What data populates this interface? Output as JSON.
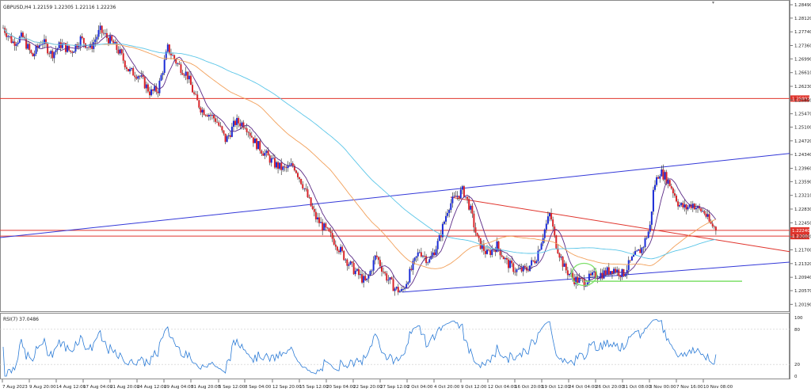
{
  "header": {
    "symbol_line": "GBPUSD,H4  1.22159 1.22305 1.22116 1.22236",
    "rsi_label": "RSI(7) 37.0486"
  },
  "colors": {
    "bull": "#1a2bd6",
    "bear": "#d9252a",
    "wick": "#222222",
    "ma_fast": "#5b2a86",
    "ma_mid": "#f2a05a",
    "ma_slow": "#5bc6e8",
    "channel": "#3338d8",
    "hline": "#e0342c",
    "trend_red": "#e0342c",
    "highlight": "#7fe06a",
    "rsi": "#2b7bd6",
    "grid": "#c8c8c8"
  },
  "chart_data": {
    "type": "candlestick",
    "title": "GBPUSD,H4",
    "ylim": [
      1.2,
      1.2849
    ],
    "price_ticks": [
      "1.28490",
      "1.28120",
      "1.27740",
      "1.27360",
      "1.26990",
      "1.26610",
      "1.26230",
      "1.25850",
      "1.25470",
      "1.25100",
      "1.24720",
      "1.24340",
      "1.23960",
      "1.23590",
      "1.23210",
      "1.22830",
      "1.22450",
      "1.22070",
      "1.21700",
      "1.21320",
      "1.20940",
      "1.20570",
      "1.20190"
    ],
    "price_tick_values": [
      1.2849,
      1.2812,
      1.2774,
      1.2736,
      1.2699,
      1.2661,
      1.2623,
      1.2585,
      1.2547,
      1.251,
      1.2472,
      1.2434,
      1.2396,
      1.2359,
      1.2321,
      1.2283,
      1.2245,
      1.2207,
      1.217,
      1.2132,
      1.2094,
      1.2057,
      1.2019
    ],
    "time_ticks": [
      "7 Aug 2023",
      "9 Aug 20:00",
      "14 Aug 12:00",
      "17 Aug 04:00",
      "21 Aug 20:00",
      "24 Aug 12:00",
      "29 Aug 04:00",
      "31 Aug 20:00",
      "5 Sep 12:00",
      "8 Sep 04:00",
      "12 Sep 20:00",
      "15 Sep 12:00",
      "20 Sep 04:00",
      "22 Sep 20:00",
      "27 Sep 12:00",
      "2 Oct 04:00",
      "4 Oct 20:00",
      "9 Oct 12:00",
      "12 Oct 04:00",
      "16 Oct 20:00",
      "19 Oct 12:00",
      "24 Oct 04:00",
      "26 Oct 20:00",
      "31 Oct 08:00",
      "3 Nov 00:00",
      "7 Nov 16:00",
      "10 Nov 08:00"
    ],
    "horizontal_levels": [
      {
        "label": "1.25892",
        "value": 1.25892
      },
      {
        "label": "1.22240",
        "value": 1.2224
      },
      {
        "label": "1.22080",
        "value": 1.2208
      }
    ],
    "price_path": [
      [
        0,
        1.2785
      ],
      [
        10,
        1.2745
      ],
      [
        20,
        1.276
      ],
      [
        30,
        1.2705
      ],
      [
        40,
        1.275
      ],
      [
        50,
        1.2712
      ],
      [
        60,
        1.274
      ],
      [
        70,
        1.2718
      ],
      [
        80,
        1.2755
      ],
      [
        90,
        1.2728
      ],
      [
        100,
        1.2778
      ],
      [
        112,
        1.2745
      ],
      [
        120,
        1.2718
      ],
      [
        130,
        1.2665
      ],
      [
        140,
        1.2655
      ],
      [
        152,
        1.2605
      ],
      [
        160,
        1.2615
      ],
      [
        170,
        1.2728
      ],
      [
        180,
        1.2685
      ],
      [
        190,
        1.2655
      ],
      [
        198,
        1.2592
      ],
      [
        205,
        1.2558
      ],
      [
        210,
        1.2552
      ],
      [
        220,
        1.253
      ],
      [
        230,
        1.2472
      ],
      [
        240,
        1.2525
      ],
      [
        250,
        1.2518
      ],
      [
        260,
        1.2468
      ],
      [
        270,
        1.2438
      ],
      [
        280,
        1.2408
      ],
      [
        290,
        1.2392
      ],
      [
        300,
        1.2405
      ],
      [
        310,
        1.2348
      ],
      [
        322,
        1.2262
      ],
      [
        332,
        1.2228
      ],
      [
        342,
        1.2195
      ],
      [
        352,
        1.2152
      ],
      [
        362,
        1.2115
      ],
      [
        375,
        1.2078
      ],
      [
        385,
        1.2155
      ],
      [
        395,
        1.2098
      ],
      [
        405,
        1.2062
      ],
      [
        412,
        1.2053
      ],
      [
        420,
        1.2105
      ],
      [
        430,
        1.2168
      ],
      [
        440,
        1.2138
      ],
      [
        450,
        1.2195
      ],
      [
        460,
        1.2292
      ],
      [
        468,
        1.2318
      ],
      [
        475,
        1.2335
      ],
      [
        482,
        1.2288
      ],
      [
        490,
        1.2195
      ],
      [
        500,
        1.2158
      ],
      [
        510,
        1.2182
      ],
      [
        520,
        1.2135
      ],
      [
        530,
        1.2112
      ],
      [
        540,
        1.2115
      ],
      [
        550,
        1.2145
      ],
      [
        560,
        1.2232
      ],
      [
        565,
        1.2272
      ],
      [
        570,
        1.2195
      ],
      [
        580,
        1.2118
      ],
      [
        590,
        1.2088
      ],
      [
        600,
        1.2082
      ],
      [
        610,
        1.2098
      ],
      [
        620,
        1.2105
      ],
      [
        630,
        1.2118
      ],
      [
        640,
        1.2102
      ],
      [
        650,
        1.2145
      ],
      [
        660,
        1.2175
      ],
      [
        668,
        1.2232
      ],
      [
        672,
        1.2345
      ],
      [
        678,
        1.2388
      ],
      [
        684,
        1.2372
      ],
      [
        690,
        1.2345
      ],
      [
        698,
        1.2295
      ],
      [
        705,
        1.2285
      ],
      [
        712,
        1.2298
      ],
      [
        718,
        1.2282
      ],
      [
        724,
        1.2275
      ],
      [
        730,
        1.2242
      ],
      [
        737,
        1.2228
      ]
    ],
    "rsi": {
      "label": "RSI(7)",
      "value": 37.0486,
      "ylim": [
        0,
        100
      ],
      "ticks": [
        "100",
        "80",
        "20",
        "0"
      ],
      "tick_values": [
        100,
        80,
        20,
        0
      ],
      "levels": [
        80,
        20
      ]
    }
  }
}
